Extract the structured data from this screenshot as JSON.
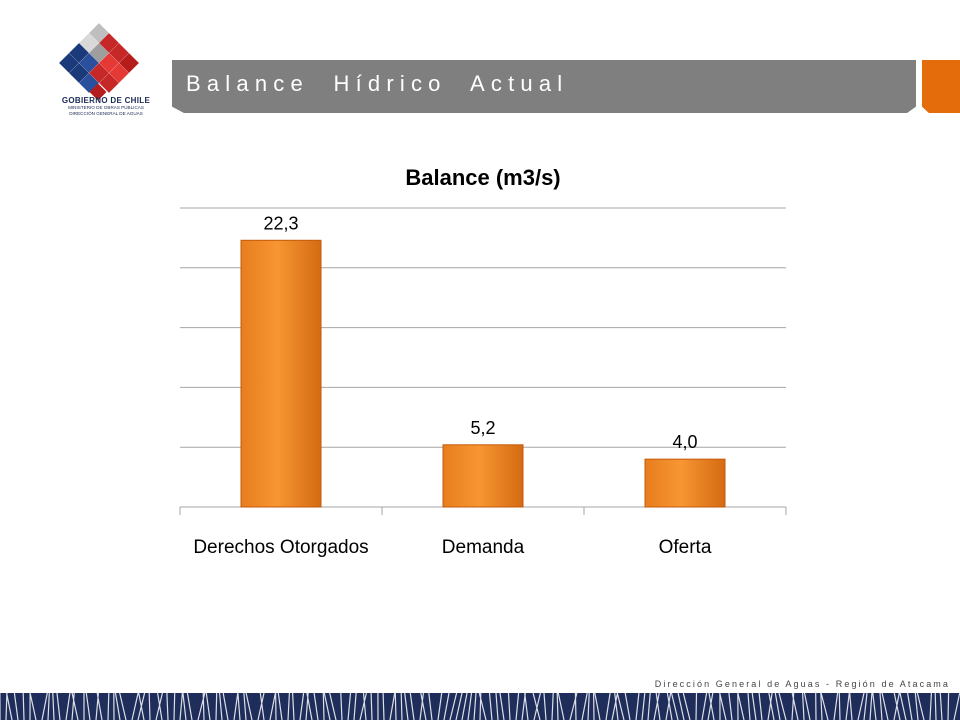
{
  "header": {
    "title": "Balance  Hídrico  Actual",
    "accent_color": "#e46c0a",
    "bar_color": "#7f7f7f"
  },
  "logo": {
    "icon": "gobierno-de-chile-logo",
    "line1": "GOBIERNO DE CHILE",
    "line2": "MINISTERIO DE OBRAS PÚBLICAS",
    "line3": "DIRECCIÓN GENERAL DE AGUAS"
  },
  "chart_data": {
    "type": "bar",
    "title": "Balance (m3/s)",
    "categories": [
      "Derechos Otorgados",
      "Demanda",
      "Oferta"
    ],
    "values": [
      22.3,
      5.2,
      4.0
    ],
    "value_labels": [
      "22,3",
      "5,2",
      "4,0"
    ],
    "ylim": [
      0,
      25
    ],
    "ytick_step": 5,
    "grid": true,
    "legend": "none",
    "bar_color": "#f79632"
  },
  "footer": {
    "text": "Dirección General de Aguas - Región de Atacama",
    "band_color": "#1f2d5a"
  }
}
